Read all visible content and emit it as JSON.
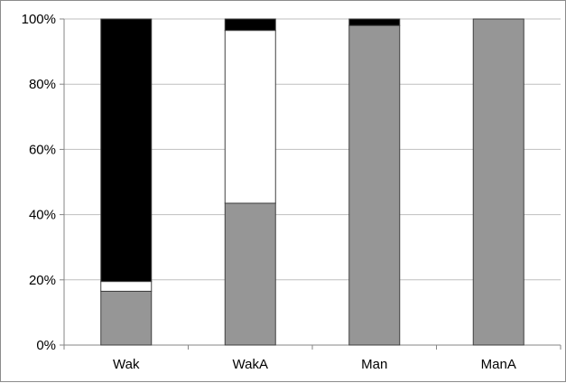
{
  "chart_data": {
    "type": "bar",
    "stacked": true,
    "percent": true,
    "title": "",
    "xlabel": "",
    "ylabel": "",
    "ylim": [
      0,
      100
    ],
    "y_ticks": [
      "0%",
      "20%",
      "40%",
      "60%",
      "80%",
      "100%"
    ],
    "y_tick_values": [
      0,
      20,
      40,
      60,
      80,
      100
    ],
    "grid": true,
    "legend": "none",
    "categories": [
      "Wak",
      "WakA",
      "Man",
      "ManA"
    ],
    "series": [
      {
        "color": "#969696",
        "values": [
          16.5,
          43.5,
          98,
          100
        ]
      },
      {
        "color": "#ffffff",
        "values": [
          3,
          53,
          0,
          0
        ]
      },
      {
        "color": "#000000",
        "values": [
          80.5,
          3.5,
          2,
          0
        ]
      }
    ]
  }
}
